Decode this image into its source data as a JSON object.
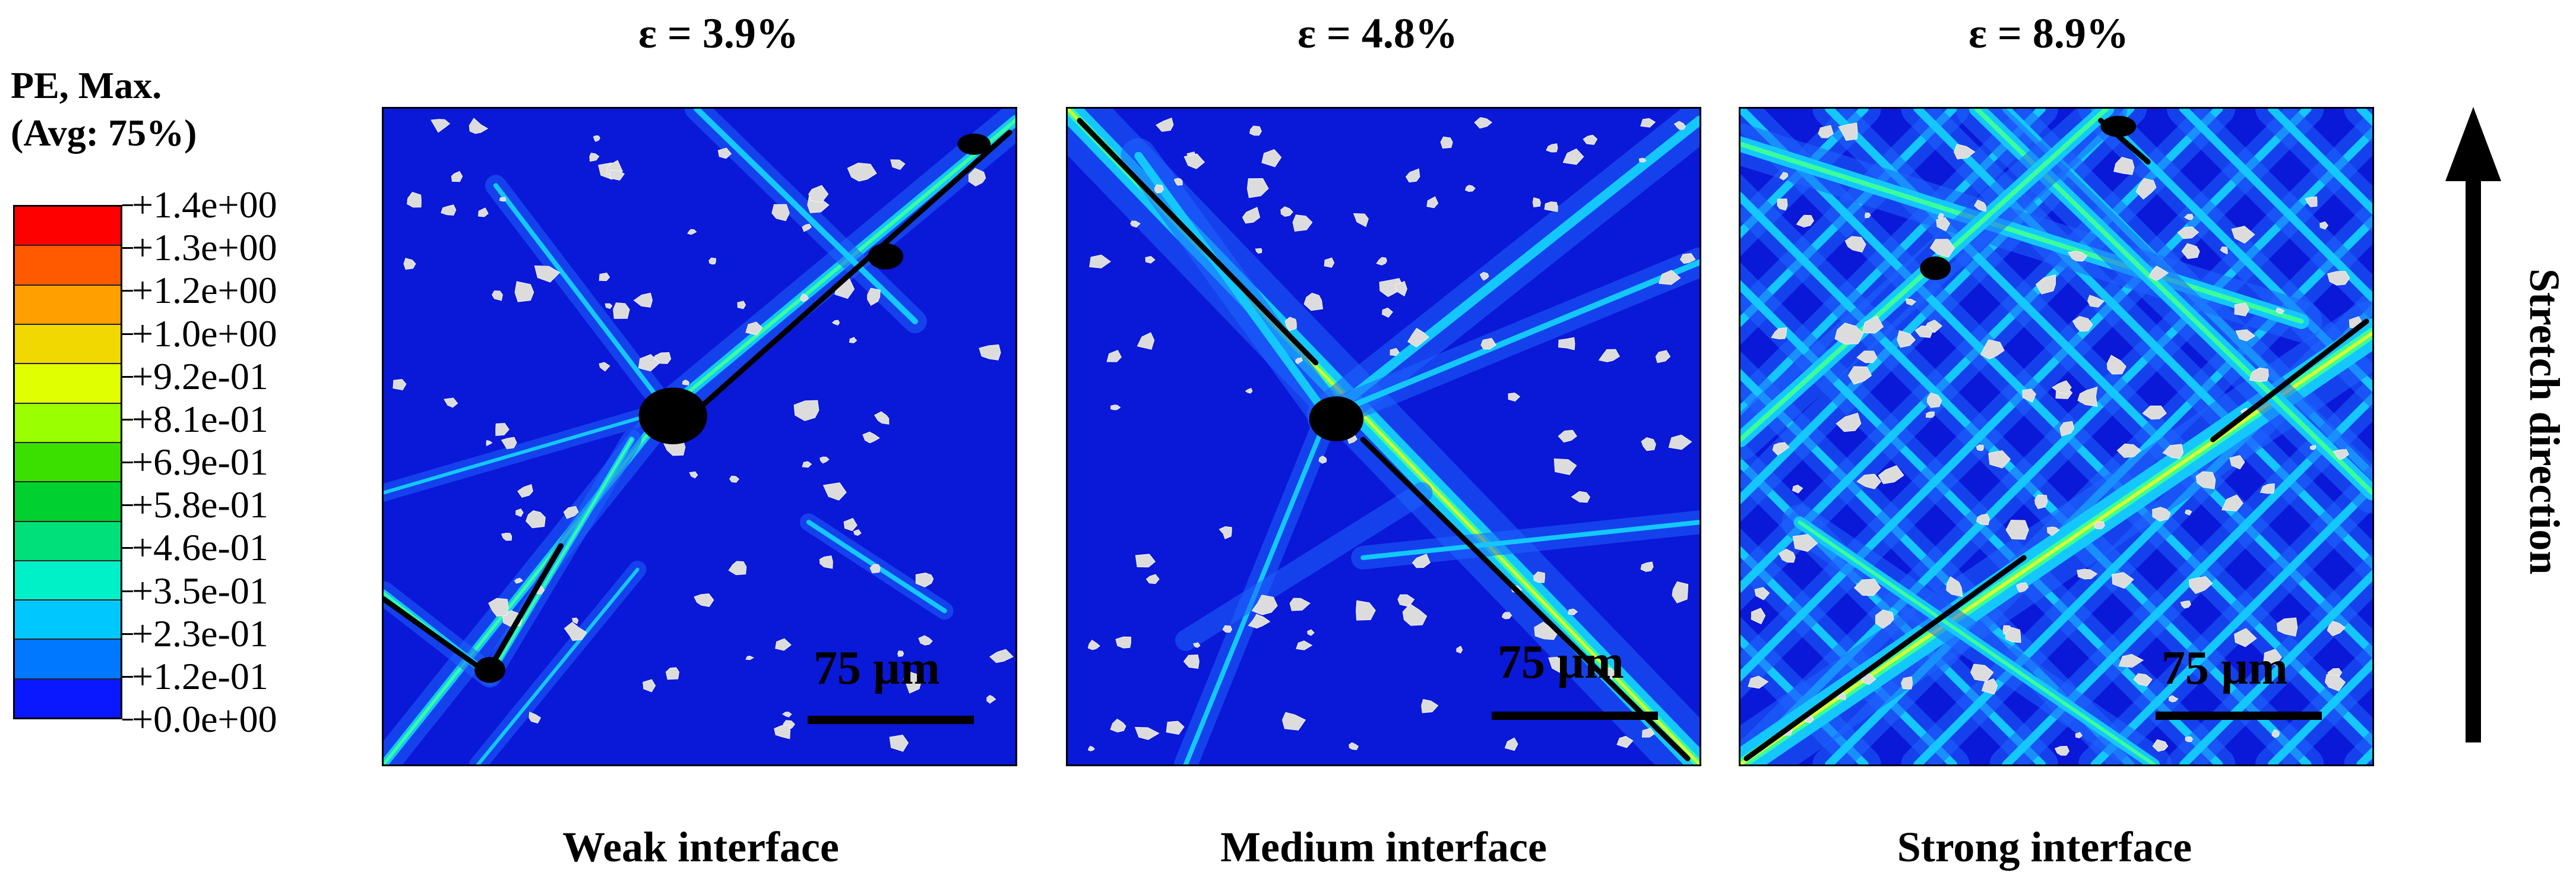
{
  "legend": {
    "title_line1": "PE, Max.",
    "title_line2": "(Avg: 75%)",
    "labels": [
      "+1.4e+00",
      "+1.3e+00",
      "+1.2e+00",
      "+1.0e+00",
      "+9.2e-01",
      "+8.1e-01",
      "+6.9e-01",
      "+5.8e-01",
      "+4.6e-01",
      "+3.5e-01",
      "+2.3e-01",
      "+1.2e-01",
      "+0.0e+00"
    ],
    "colors": [
      "#ff0000",
      "#ff5a00",
      "#ff9f00",
      "#f0d800",
      "#e0ff00",
      "#9aff00",
      "#3ce000",
      "#00d030",
      "#00e07a",
      "#00f0c8",
      "#00c8ff",
      "#0078ff",
      "#0a18ff"
    ]
  },
  "panels": [
    {
      "strain": "ε = 3.9%",
      "caption": "Weak interface",
      "scale_label": "75 µm"
    },
    {
      "strain": "ε = 4.8%",
      "caption": "Medium interface",
      "scale_label": "75 µm"
    },
    {
      "strain": "ε = 8.9%",
      "caption": "Strong interface",
      "scale_label": "75 µm"
    }
  ],
  "stretch_label": "Stretch direction",
  "colors": {
    "matrix": "#0a18d8",
    "band_low": "#1e64ff",
    "band_mid": "#14c8ff",
    "band_high": "#3cff9a",
    "band_peak": "#d8ff30",
    "particle": "#dcdcdc",
    "void": "#000000"
  }
}
